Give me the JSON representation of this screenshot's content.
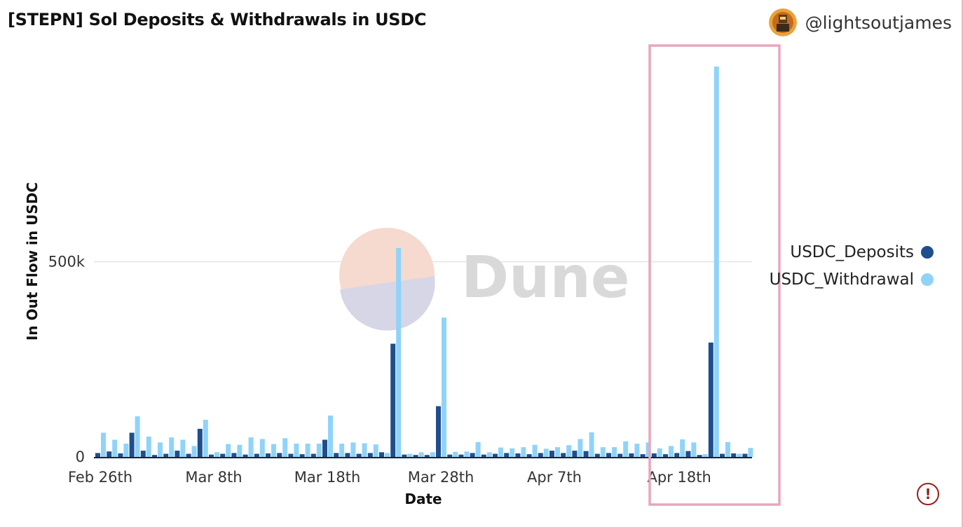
{
  "header": {
    "title": "[STEPN] Sol Deposits & Withdrawals in USDC",
    "author": "@lightsoutjames"
  },
  "watermark": {
    "text": "Dune"
  },
  "colors": {
    "deposits": "#1f4e8c",
    "withdrawal": "#8fd3f9",
    "highlight_box": "#e8a6bd",
    "grid": "#e6e6e6",
    "alert": "#9b1c1c"
  },
  "icons": {
    "author_avatar": "avatar-icon",
    "alert": "alert-circle-icon"
  },
  "chart_data": {
    "type": "bar",
    "title": "[STEPN] Sol Deposits & Withdrawals in USDC",
    "xlabel": "Date",
    "ylabel": "In Out Flow in USDC",
    "ylim": [
      0,
      1000000
    ],
    "yticks": [
      {
        "value": 0,
        "label": "0"
      },
      {
        "value": 500000,
        "label": "500k"
      }
    ],
    "xticks": [
      {
        "index": 0,
        "label": "Feb 26th"
      },
      {
        "index": 10,
        "label": "Mar 8th"
      },
      {
        "index": 20,
        "label": "Mar 18th"
      },
      {
        "index": 30,
        "label": "Mar 28th"
      },
      {
        "index": 40,
        "label": "Apr 7th"
      },
      {
        "index": 51,
        "label": "Apr 18th"
      }
    ],
    "grid": true,
    "legend_position": "right",
    "categories": [
      "Feb 26",
      "Feb 27",
      "Feb 28",
      "Mar 1",
      "Mar 2",
      "Mar 3",
      "Mar 4",
      "Mar 5",
      "Mar 6",
      "Mar 7",
      "Mar 8",
      "Mar 9",
      "Mar 10",
      "Mar 11",
      "Mar 12",
      "Mar 13",
      "Mar 14",
      "Mar 15",
      "Mar 16",
      "Mar 17",
      "Mar 18",
      "Mar 19",
      "Mar 20",
      "Mar 21",
      "Mar 22",
      "Mar 23",
      "Mar 24",
      "Mar 25",
      "Mar 26",
      "Mar 27",
      "Mar 28",
      "Mar 29",
      "Mar 30",
      "Mar 31",
      "Apr 1",
      "Apr 2",
      "Apr 3",
      "Apr 4",
      "Apr 5",
      "Apr 6",
      "Apr 7",
      "Apr 8",
      "Apr 9",
      "Apr 10",
      "Apr 11",
      "Apr 12",
      "Apr 13",
      "Apr 14",
      "Apr 15",
      "Apr 16",
      "Apr 17",
      "Apr 18",
      "Apr 19",
      "Apr 20",
      "Apr 21",
      "Apr 22",
      "Apr 23",
      "Apr 24"
    ],
    "series": [
      {
        "name": "USDC_Deposits",
        "values": [
          10000,
          14000,
          9000,
          62000,
          16000,
          5000,
          8000,
          16000,
          8000,
          72000,
          6000,
          8000,
          10000,
          6000,
          8000,
          9000,
          10000,
          8000,
          7000,
          8000,
          44000,
          10000,
          10000,
          8000,
          10000,
          12000,
          290000,
          6000,
          5000,
          5000,
          130000,
          6000,
          6000,
          10000,
          6000,
          8000,
          10000,
          9000,
          7000,
          10000,
          16000,
          10000,
          16000,
          15000,
          8000,
          10000,
          8000,
          9000,
          7000,
          9000,
          7000,
          10000,
          15000,
          5000,
          293000,
          8000,
          9000,
          8000
        ]
      },
      {
        "name": "USDC_Withdrawal",
        "values": [
          62000,
          44000,
          34000,
          104000,
          52000,
          37000,
          50000,
          44000,
          28000,
          95000,
          12000,
          33000,
          31000,
          50000,
          46000,
          33000,
          48000,
          34000,
          34000,
          34000,
          106000,
          34000,
          37000,
          35000,
          32000,
          10000,
          535000,
          8000,
          12000,
          12000,
          357000,
          13000,
          14000,
          38000,
          12000,
          24000,
          22000,
          25000,
          31000,
          21000,
          25000,
          30000,
          46000,
          63000,
          25000,
          25000,
          40000,
          34000,
          37000,
          22000,
          28000,
          45000,
          37000,
          7000,
          1000000,
          38000,
          8000,
          23000
        ]
      }
    ]
  }
}
